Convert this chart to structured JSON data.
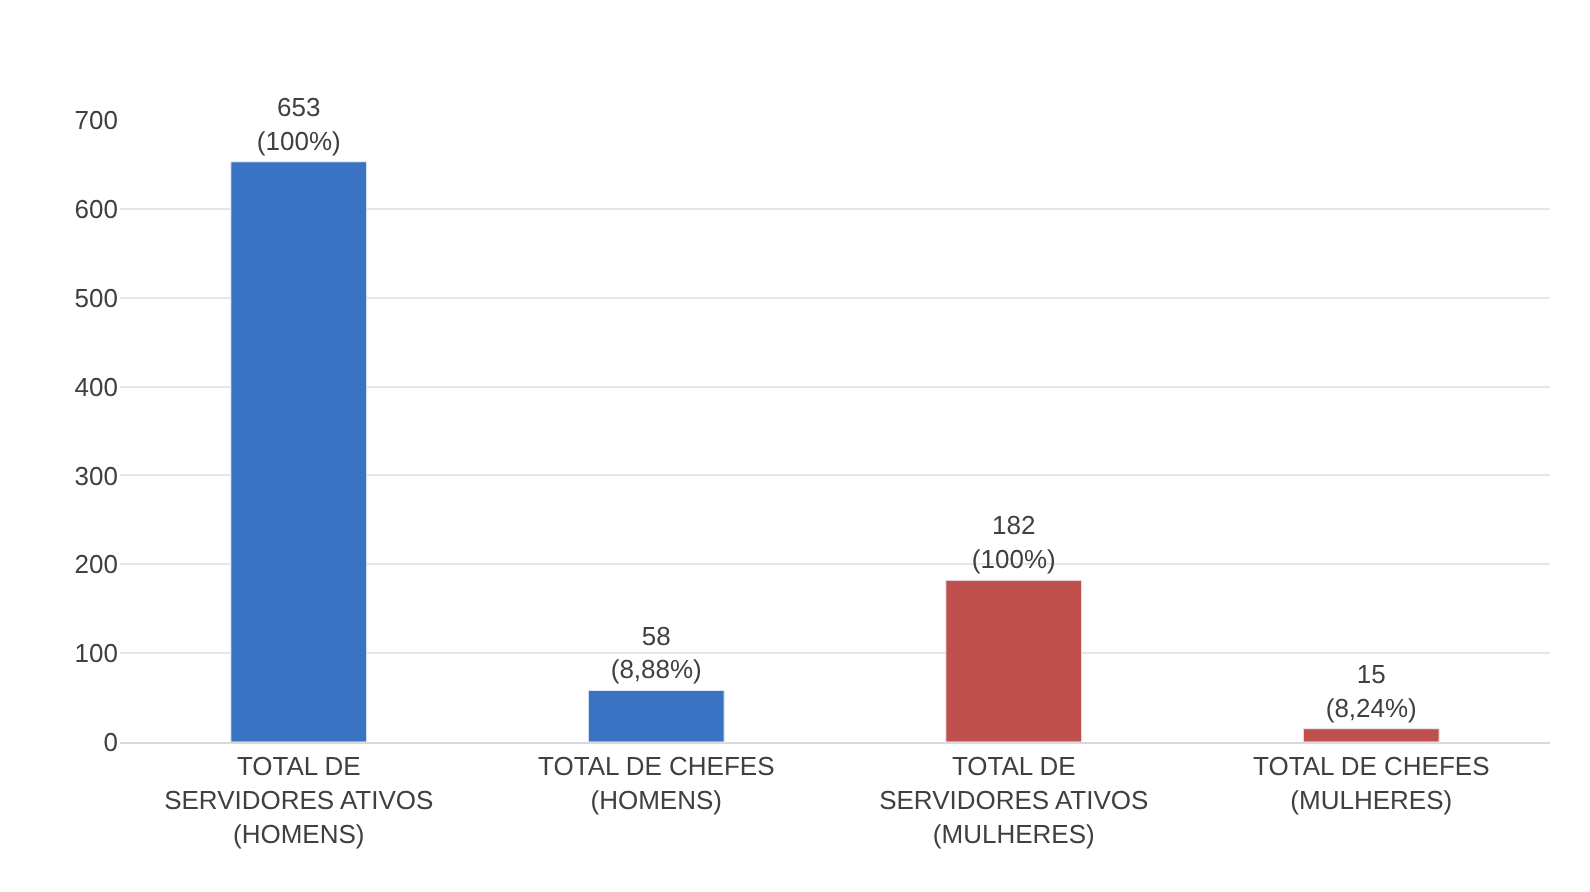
{
  "chart_data": {
    "type": "bar",
    "categories": [
      "TOTAL DE\nSERVIDORES ATIVOS\n(HOMENS)",
      "TOTAL DE CHEFES\n(HOMENS)",
      "TOTAL DE\nSERVIDORES ATIVOS\n(MULHERES)",
      "TOTAL DE CHEFES\n(MULHERES)"
    ],
    "values": [
      653,
      58,
      182,
      15
    ],
    "colors": [
      "#3b73c4",
      "#3b73c4",
      "#c0504d",
      "#c0504d"
    ],
    "value_labels": [
      "653\n(100%)",
      "58\n(8,88%)",
      "182\n(100%)",
      "15\n(8,24%)"
    ],
    "ylim": [
      0,
      700
    ],
    "yticks": [
      0,
      100,
      200,
      300,
      400,
      500,
      600,
      700
    ],
    "grid": "y"
  }
}
